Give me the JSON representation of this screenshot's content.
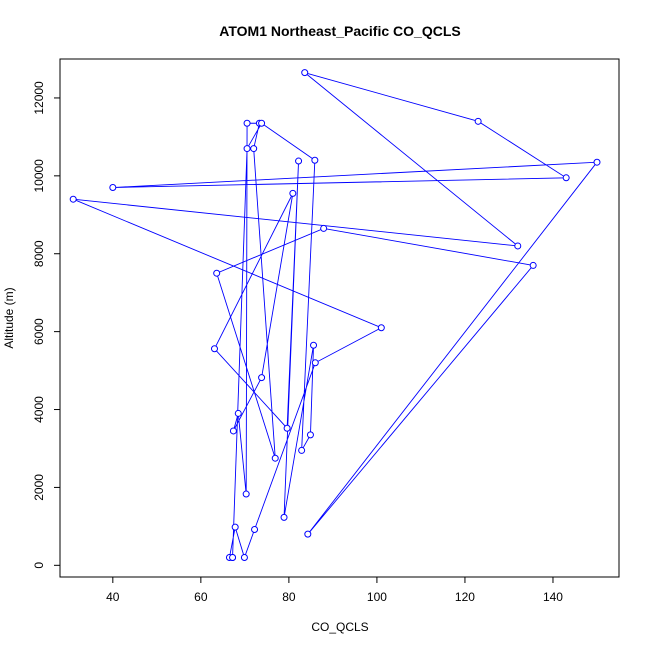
{
  "chart_data": {
    "type": "line",
    "title": "ATOM1 Northeast_Pacific CO_QCLS",
    "xlabel": "CO_QCLS",
    "ylabel": "Altitude (m)",
    "xlim": [
      28,
      155
    ],
    "ylim": [
      -300,
      13000
    ],
    "xticks": [
      40,
      60,
      80,
      100,
      120,
      140
    ],
    "yticks": [
      0,
      2000,
      4000,
      6000,
      8000,
      10000,
      12000
    ],
    "grid": false,
    "markers": "open-circle",
    "color": "#0000ff",
    "series": [
      {
        "x": [
          67.2,
          66.5,
          67.8,
          69.9,
          72.2,
          86,
          101,
          31,
          132,
          83.6,
          123,
          143,
          40,
          150,
          84.3,
          135.5,
          87.9,
          63.6,
          76.9,
          72,
          73.3,
          70.5,
          70.3,
          68.5,
          67.4,
          73.8,
          80.9,
          63.1,
          79.6,
          82.2,
          78.9,
          85.6,
          84.9,
          82.9,
          85.9,
          73.8,
          70.5,
          67.2
        ],
        "y": [
          200,
          200,
          980,
          200,
          920,
          5200,
          6100,
          9400,
          8200,
          12650,
          11400,
          9950,
          9700,
          10350,
          800,
          7700,
          8650,
          7500,
          2750,
          10700,
          11350,
          11350,
          1830,
          3900,
          3450,
          4820,
          9550,
          5560,
          3520,
          10380,
          1230,
          5650,
          3350,
          2950,
          10400,
          11350,
          10700,
          200
        ]
      }
    ]
  }
}
